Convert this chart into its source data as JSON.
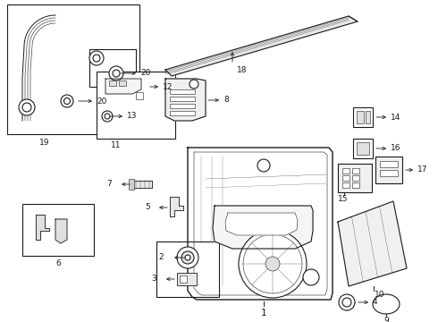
{
  "bg_color": "#ffffff",
  "line_color": "#1a1a1a",
  "lw": 0.8,
  "tlw": 0.4,
  "fs": 6.5,
  "fig_w": 4.9,
  "fig_h": 3.6,
  "dpi": 100
}
